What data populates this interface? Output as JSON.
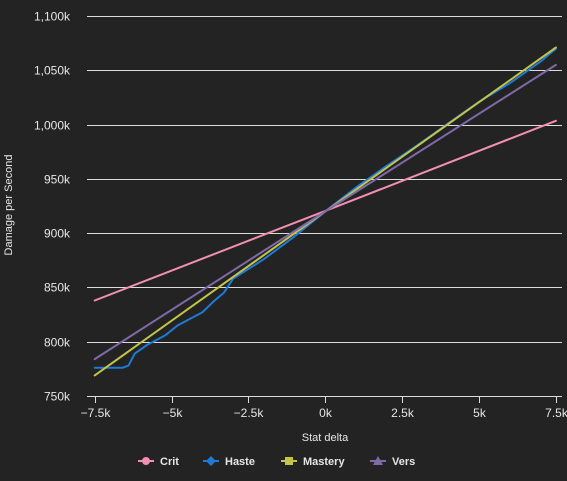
{
  "chart_data": {
    "type": "line",
    "title": "",
    "xlabel": "Stat delta",
    "ylabel": "Damage per Second",
    "xlim": [
      -7750,
      7700
    ],
    "ylim": [
      750000,
      1100000
    ],
    "x_ticks": [
      -7500,
      -5000,
      -2500,
      0,
      2500,
      5000,
      7500
    ],
    "x_tick_labels": [
      "−7.5k",
      "−5k",
      "−2.5k",
      "0k",
      "2.5k",
      "5k",
      "7.5k"
    ],
    "y_ticks": [
      750000,
      800000,
      850000,
      900000,
      950000,
      1000000,
      1050000,
      1100000
    ],
    "y_tick_labels": [
      "750k",
      "800k",
      "850k",
      "900k",
      "950k",
      "1,000k",
      "1,050k",
      "1,100k"
    ],
    "grid": true,
    "legend_position": "bottom-center",
    "series": [
      {
        "name": "Crit",
        "color": "#f28fb3",
        "marker": "circle",
        "points": [
          [
            -7500,
            838000
          ],
          [
            0,
            920500
          ],
          [
            7500,
            1003500
          ]
        ]
      },
      {
        "name": "Haste",
        "color": "#1f7ad6",
        "marker": "diamond",
        "points": [
          [
            -7500,
            776000
          ],
          [
            -6600,
            776000
          ],
          [
            -6400,
            778000
          ],
          [
            -6200,
            789000
          ],
          [
            -5800,
            797000
          ],
          [
            -5200,
            806000
          ],
          [
            -4800,
            815000
          ],
          [
            -4400,
            821000
          ],
          [
            -4000,
            827000
          ],
          [
            -3600,
            838000
          ],
          [
            -3300,
            845000
          ],
          [
            -3000,
            858000
          ],
          [
            -2000,
            876000
          ],
          [
            -1000,
            897000
          ],
          [
            0,
            920000
          ],
          [
            1000,
            942000
          ],
          [
            2000,
            962000
          ],
          [
            3000,
            981000
          ],
          [
            4000,
            1001000
          ],
          [
            5000,
            1021000
          ],
          [
            6000,
            1038000
          ],
          [
            7000,
            1058000
          ],
          [
            7500,
            1070000
          ]
        ]
      },
      {
        "name": "Mastery",
        "color": "#c4c44a",
        "marker": "square",
        "points": [
          [
            -7500,
            769000
          ],
          [
            0,
            920000
          ],
          [
            7500,
            1071000
          ]
        ]
      },
      {
        "name": "Vers",
        "color": "#7f6aa8",
        "marker": "triangle",
        "points": [
          [
            -7500,
            784000
          ],
          [
            0,
            920000
          ],
          [
            7500,
            1055000
          ]
        ]
      }
    ]
  }
}
